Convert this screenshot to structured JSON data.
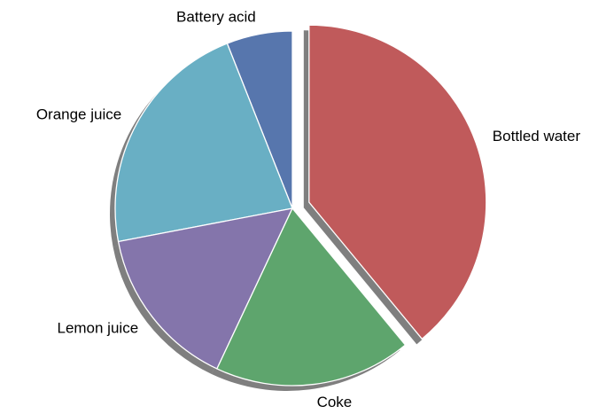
{
  "chart_data": {
    "type": "pie",
    "title": "",
    "start_angle_deg": 90,
    "direction": "counterclockwise",
    "shadow": true,
    "slices": [
      {
        "label": "Battery acid",
        "value": 6,
        "color": "#5776ad",
        "explode": 0
      },
      {
        "label": "Orange juice",
        "value": 22,
        "color": "#69afc4",
        "explode": 0
      },
      {
        "label": "Lemon juice",
        "value": 15,
        "color": "#8475ab",
        "explode": 0
      },
      {
        "label": "Coke",
        "value": 18,
        "color": "#5ea56d",
        "explode": 0
      },
      {
        "label": "Bottled water",
        "value": 39,
        "color": "#c05a5b",
        "explode": 0.1
      }
    ]
  }
}
